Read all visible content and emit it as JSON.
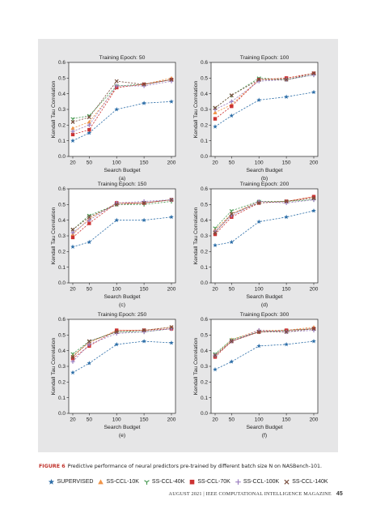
{
  "figure": {
    "caption_label": "FIGURE 6",
    "caption_text": "Predictive performance of neural predictors pre-trained by different batch size N on NASBench-101."
  },
  "footer": {
    "text": "AUGUST 2021 | IEEE COMPUTATIONAL INTELLIGENCE MAGAZINE",
    "page_number": "45"
  },
  "colors": {
    "SUPERVISED": "#2d6ea8",
    "SS-CCL-10K": "#f0954a",
    "SS-CCL-40K": "#4a9a55",
    "SS-CCL-70K": "#cc3333",
    "SS-CCL-100K": "#9b7fc0",
    "SS-CCL-140K": "#7a5040"
  },
  "legend": [
    {
      "name": "SUPERVISED",
      "marker": "star-icon"
    },
    {
      "name": "SS-CCL-10K",
      "marker": "triangle-icon"
    },
    {
      "name": "SS-CCL-40K",
      "marker": "tri-down-icon"
    },
    {
      "name": "SS-CCL-70K",
      "marker": "square-icon"
    },
    {
      "name": "SS-CCL-100K",
      "marker": "plus-icon"
    },
    {
      "name": "SS-CCL-140K",
      "marker": "x-icon"
    }
  ],
  "chart_data": [
    {
      "type": "line",
      "label": "(a)",
      "title": "Training Epoch: 50",
      "xlabel": "Search Budget",
      "ylabel": "Kendall Tau Correlation",
      "x": [
        20,
        50,
        100,
        150,
        200
      ],
      "ylim": [
        0,
        0.6
      ],
      "yticks": [
        "0.0",
        "0.1",
        "0.2",
        "0.3",
        "0.4",
        "0.5",
        "0.6"
      ],
      "xticks": [
        "20",
        "50",
        "100",
        "150",
        "200"
      ],
      "series": [
        {
          "name": "SUPERVISED",
          "values": [
            0.1,
            0.15,
            0.3,
            0.34,
            0.35
          ]
        },
        {
          "name": "SS-CCL-10K",
          "values": [
            0.18,
            0.22,
            0.44,
            0.46,
            0.5
          ]
        },
        {
          "name": "SS-CCL-40K",
          "values": [
            0.24,
            0.26,
            0.45,
            0.46,
            0.49
          ]
        },
        {
          "name": "SS-CCL-70K",
          "values": [
            0.14,
            0.17,
            0.44,
            0.46,
            0.49
          ]
        },
        {
          "name": "SS-CCL-100K",
          "values": [
            0.16,
            0.2,
            0.45,
            0.45,
            0.48
          ]
        },
        {
          "name": "SS-CCL-140K",
          "values": [
            0.22,
            0.25,
            0.48,
            0.46,
            0.49
          ]
        }
      ]
    },
    {
      "type": "line",
      "label": "(b)",
      "title": "Training Epoch: 100",
      "xlabel": "Search Budget",
      "ylabel": "Kendall Tau Correlation",
      "x": [
        20,
        50,
        100,
        150,
        200
      ],
      "ylim": [
        0,
        0.6
      ],
      "yticks": [
        "0.0",
        "0.1",
        "0.2",
        "0.3",
        "0.4",
        "0.5",
        "0.6"
      ],
      "xticks": [
        "20",
        "50",
        "100",
        "150",
        "200"
      ],
      "series": [
        {
          "name": "SUPERVISED",
          "values": [
            0.19,
            0.26,
            0.36,
            0.38,
            0.41
          ]
        },
        {
          "name": "SS-CCL-10K",
          "values": [
            0.28,
            0.33,
            0.49,
            0.5,
            0.53
          ]
        },
        {
          "name": "SS-CCL-40K",
          "values": [
            0.31,
            0.39,
            0.5,
            0.49,
            0.52
          ]
        },
        {
          "name": "SS-CCL-70K",
          "values": [
            0.24,
            0.32,
            0.49,
            0.5,
            0.53
          ]
        },
        {
          "name": "SS-CCL-100K",
          "values": [
            0.3,
            0.35,
            0.48,
            0.49,
            0.52
          ]
        },
        {
          "name": "SS-CCL-140K",
          "values": [
            0.31,
            0.39,
            0.49,
            0.49,
            0.53
          ]
        }
      ]
    },
    {
      "type": "line",
      "label": "(c)",
      "title": "Training Epoch: 150",
      "xlabel": "Search Budget",
      "ylabel": "Kendall Tau Correlation",
      "x": [
        20,
        50,
        100,
        150,
        200
      ],
      "ylim": [
        0,
        0.6
      ],
      "yticks": [
        "0.0",
        "0.1",
        "0.2",
        "0.3",
        "0.4",
        "0.5",
        "0.6"
      ],
      "xticks": [
        "20",
        "50",
        "100",
        "150",
        "200"
      ],
      "series": [
        {
          "name": "SUPERVISED",
          "values": [
            0.23,
            0.26,
            0.4,
            0.4,
            0.42
          ]
        },
        {
          "name": "SS-CCL-10K",
          "values": [
            0.31,
            0.41,
            0.51,
            0.51,
            0.53
          ]
        },
        {
          "name": "SS-CCL-40K",
          "values": [
            0.34,
            0.43,
            0.5,
            0.5,
            0.52
          ]
        },
        {
          "name": "SS-CCL-70K",
          "values": [
            0.29,
            0.38,
            0.51,
            0.51,
            0.53
          ]
        },
        {
          "name": "SS-CCL-100K",
          "values": [
            0.32,
            0.4,
            0.51,
            0.52,
            0.53
          ]
        },
        {
          "name": "SS-CCL-140K",
          "values": [
            0.34,
            0.42,
            0.5,
            0.51,
            0.53
          ]
        }
      ]
    },
    {
      "type": "line",
      "label": "(d)",
      "title": "Training Epoch: 200",
      "xlabel": "Search Budget",
      "ylabel": "Kendall Tau Correlation",
      "x": [
        20,
        50,
        100,
        150,
        200
      ],
      "ylim": [
        0,
        0.6
      ],
      "yticks": [
        "0.0",
        "0.1",
        "0.2",
        "0.3",
        "0.4",
        "0.5",
        "0.6"
      ],
      "xticks": [
        "20",
        "50",
        "100",
        "150",
        "200"
      ],
      "series": [
        {
          "name": "SUPERVISED",
          "values": [
            0.24,
            0.26,
            0.39,
            0.42,
            0.46
          ]
        },
        {
          "name": "SS-CCL-10K",
          "values": [
            0.34,
            0.44,
            0.52,
            0.52,
            0.55
          ]
        },
        {
          "name": "SS-CCL-40K",
          "values": [
            0.35,
            0.46,
            0.52,
            0.52,
            0.53
          ]
        },
        {
          "name": "SS-CCL-70K",
          "values": [
            0.31,
            0.42,
            0.51,
            0.52,
            0.55
          ]
        },
        {
          "name": "SS-CCL-100K",
          "values": [
            0.33,
            0.43,
            0.52,
            0.51,
            0.53
          ]
        },
        {
          "name": "SS-CCL-140K",
          "values": [
            0.32,
            0.44,
            0.51,
            0.52,
            0.54
          ]
        }
      ]
    },
    {
      "type": "line",
      "label": "(e)",
      "title": "Training Epoch: 250",
      "xlabel": "Search Budget",
      "ylabel": "Kendall Tau Correlation",
      "x": [
        20,
        50,
        100,
        150,
        200
      ],
      "ylim": [
        0,
        0.6
      ],
      "yticks": [
        "0.0",
        "0.1",
        "0.2",
        "0.3",
        "0.4",
        "0.5",
        "0.6"
      ],
      "xticks": [
        "20",
        "50",
        "100",
        "150",
        "200"
      ],
      "series": [
        {
          "name": "SUPERVISED",
          "values": [
            0.26,
            0.32,
            0.44,
            0.46,
            0.45
          ]
        },
        {
          "name": "SS-CCL-10K",
          "values": [
            0.37,
            0.45,
            0.53,
            0.53,
            0.55
          ]
        },
        {
          "name": "SS-CCL-40K",
          "values": [
            0.38,
            0.46,
            0.52,
            0.52,
            0.54
          ]
        },
        {
          "name": "SS-CCL-70K",
          "values": [
            0.35,
            0.43,
            0.53,
            0.53,
            0.54
          ]
        },
        {
          "name": "SS-CCL-100K",
          "values": [
            0.33,
            0.44,
            0.51,
            0.52,
            0.54
          ]
        },
        {
          "name": "SS-CCL-140K",
          "values": [
            0.36,
            0.46,
            0.52,
            0.53,
            0.55
          ]
        }
      ]
    },
    {
      "type": "line",
      "label": "(f)",
      "title": "Training Epoch: 300",
      "xlabel": "Search Budget",
      "ylabel": "Kendall Tau Correlation",
      "x": [
        20,
        50,
        100,
        150,
        200
      ],
      "ylim": [
        0,
        0.6
      ],
      "yticks": [
        "0.0",
        "0.1",
        "0.2",
        "0.3",
        "0.4",
        "0.5",
        "0.6"
      ],
      "xticks": [
        "20",
        "50",
        "100",
        "150",
        "200"
      ],
      "series": [
        {
          "name": "SUPERVISED",
          "values": [
            0.28,
            0.33,
            0.43,
            0.44,
            0.46
          ]
        },
        {
          "name": "SS-CCL-10K",
          "values": [
            0.37,
            0.47,
            0.53,
            0.53,
            0.55
          ]
        },
        {
          "name": "SS-CCL-40K",
          "values": [
            0.38,
            0.47,
            0.52,
            0.53,
            0.54
          ]
        },
        {
          "name": "SS-CCL-70K",
          "values": [
            0.36,
            0.46,
            0.52,
            0.53,
            0.54
          ]
        },
        {
          "name": "SS-CCL-100K",
          "values": [
            0.37,
            0.46,
            0.53,
            0.52,
            0.53
          ]
        },
        {
          "name": "SS-CCL-140K",
          "values": [
            0.37,
            0.46,
            0.52,
            0.52,
            0.54
          ]
        }
      ]
    }
  ]
}
